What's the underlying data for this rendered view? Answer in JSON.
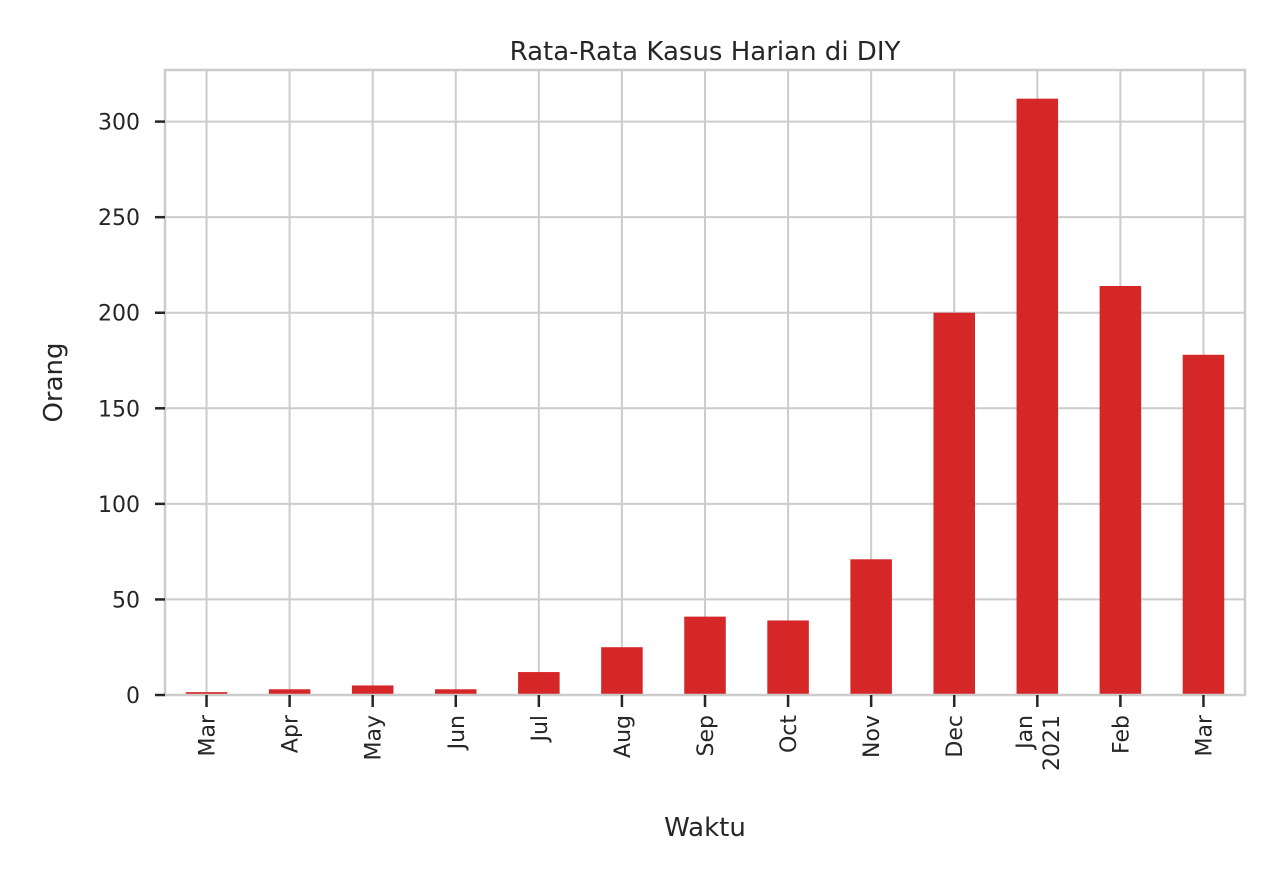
{
  "chart_data": {
    "type": "bar",
    "title": "Rata-Rata Kasus Harian di DIY",
    "xlabel": "Waktu",
    "ylabel": "Orang",
    "categories": [
      "Mar",
      "Apr",
      "May",
      "Jun",
      "Jul",
      "Aug",
      "Sep",
      "Oct",
      "Nov",
      "Dec",
      "Jan\n2021",
      "Feb",
      "Mar"
    ],
    "values": [
      1.5,
      3,
      5,
      3,
      12,
      25,
      41,
      39,
      71,
      200,
      312,
      214,
      178
    ],
    "ylim": [
      0,
      327
    ],
    "yticks": [
      0,
      50,
      100,
      150,
      200,
      250,
      300
    ],
    "bar_color": "#d62728",
    "grid": true,
    "legend": "none"
  }
}
